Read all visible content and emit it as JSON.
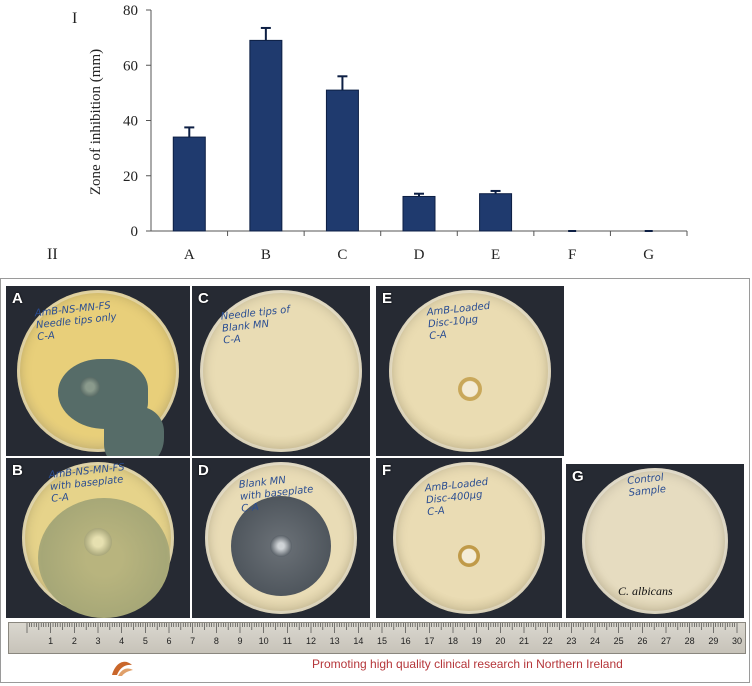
{
  "figure": {
    "panel_top_label": "I",
    "panel_bottom_label": "II"
  },
  "chart_data": {
    "type": "bar",
    "categories": [
      "A",
      "B",
      "C",
      "D",
      "E",
      "F",
      "G"
    ],
    "values": [
      34,
      69,
      51,
      12.5,
      13.5,
      0,
      0
    ],
    "errors": [
      3.5,
      4.5,
      5,
      1,
      1,
      0,
      0
    ],
    "ylabel": "Zone of inhibition (mm)",
    "xlabel": "",
    "yticks": [
      0,
      20,
      40,
      60,
      80
    ],
    "ylim": [
      0,
      80
    ],
    "bar_color": "#1f3a6e",
    "grid": false
  },
  "plates": [
    {
      "letter": "A",
      "text": "AmB-NS-MN-FS\nNeedle tips only\nC-A"
    },
    {
      "letter": "C",
      "text": "Needle tips of\nBlank MN\nC-A"
    },
    {
      "letter": "E",
      "text": "AmB-Loaded\nDisc-10μg\nC-A"
    },
    {
      "letter": "B",
      "text": "AmB-NS-MN-FS\nwith baseplate\nC-A"
    },
    {
      "letter": "D",
      "text": "Blank MN\nwith baseplate\nC-A"
    },
    {
      "letter": "F",
      "text": "AmB-Loaded\nDisc-400μg\nC-A"
    },
    {
      "letter": "G",
      "text": "Control\nSample"
    }
  ],
  "organism_label": "C. albicans",
  "ruler_numbers": [
    "1",
    "2",
    "3",
    "4",
    "5",
    "6",
    "7",
    "8",
    "9",
    "10",
    "11",
    "12",
    "13",
    "14",
    "15",
    "16",
    "17",
    "18",
    "19",
    "20",
    "21",
    "22",
    "23",
    "24",
    "25",
    "26",
    "27",
    "28",
    "29",
    "30"
  ],
  "footer_text": "Promoting high quality clinical research in Northern Ireland"
}
